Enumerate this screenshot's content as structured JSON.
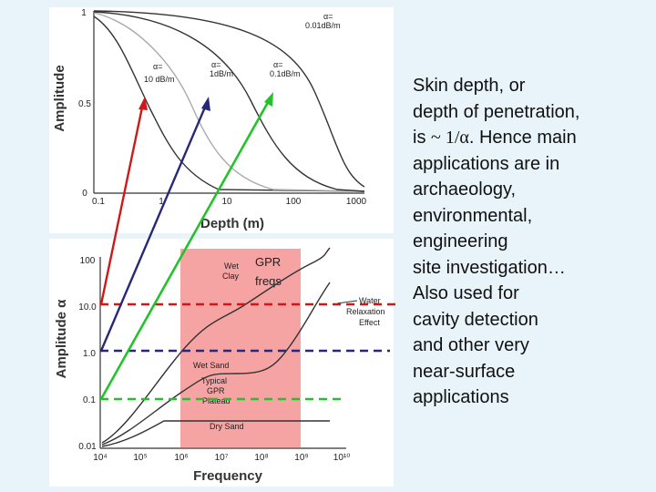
{
  "top_plot": {
    "ylabel": "Amplitude",
    "xlabel": "Depth (m)",
    "y_ticks": [
      "1",
      "0.5",
      "0"
    ],
    "x_ticks": [
      "0.1",
      "1",
      "10",
      "100",
      "1000"
    ],
    "curve_labels": {
      "c001": [
        "α=",
        "0.01dB/m"
      ],
      "c01": [
        "α=",
        "0.1dB/m"
      ],
      "c1": [
        "α=",
        "1dB/m"
      ],
      "c10": [
        "α=",
        "10 dB/m"
      ]
    }
  },
  "bottom_plot": {
    "ylabel": "Amplitude α",
    "xlabel": "Frequency",
    "y_ticks": [
      "100",
      "10.0",
      "1.0",
      "0.1",
      "0.01"
    ],
    "x_ticks": [
      "10⁴",
      "10⁵",
      "10⁶",
      "10⁷",
      "10⁸",
      "10⁹",
      "10¹⁰"
    ],
    "band_label": [
      "GPR",
      "freqs"
    ],
    "labels": {
      "wet_clay": [
        "Wet",
        "Clay"
      ],
      "water": [
        "Water",
        "Relaxation",
        "Effect"
      ],
      "wet_sand": "Wet Sand",
      "plateau": [
        "Typical",
        "GPR",
        "Plateau"
      ],
      "dry_sand": "Dry Sand"
    }
  },
  "colors": {
    "red": "#d01818",
    "navy": "#27287a",
    "green": "#22c32a",
    "band": "#f28c8c"
  },
  "text": {
    "p1_line1": "Skin depth, or",
    "p1_line2": "depth of penetration,",
    "p1_is": "is ",
    "p1_formula": "~ 1/α",
    "p1_rest": ". Hence main",
    "p1_line4": "applications are in",
    "p1_line5": "archaeology,",
    "p1_line6": "environmental,",
    "p1_line7": "engineering",
    "p1_line8": "site investigation…",
    "p2_line1": "Also used for",
    "p2_line2": "cavity detection",
    "p2_line3": "and other very",
    "p2_line4": "near-surface",
    "p2_line5": "applications"
  }
}
